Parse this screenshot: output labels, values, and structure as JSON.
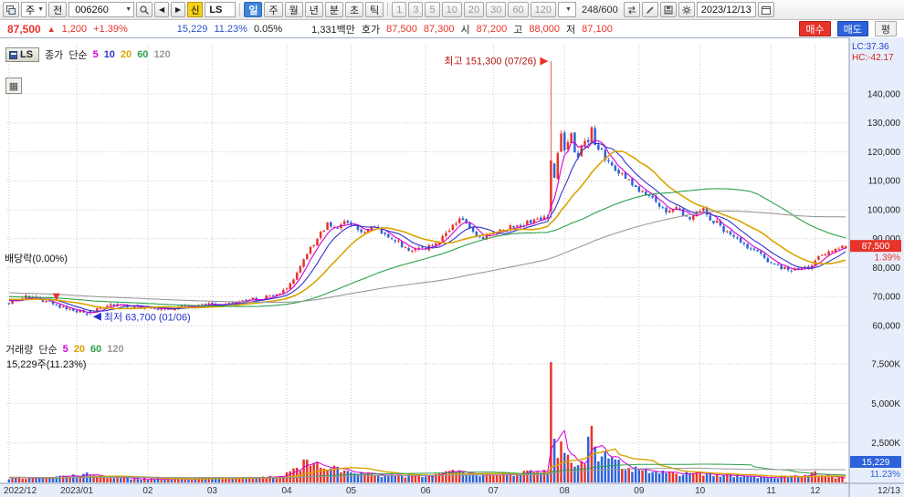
{
  "toolbar": {
    "period_combo": "주",
    "jeon_button": "전",
    "stock_code": "006260",
    "new_badge": "신",
    "stock_name": "LS",
    "period_tabs": [
      "일",
      "주",
      "월",
      "년",
      "분",
      "초",
      "틱"
    ],
    "active_period": "일",
    "interval_buttons": [
      "1",
      "3",
      "5",
      "10",
      "20",
      "30",
      "60",
      "120"
    ],
    "bar_counter": "248/600",
    "date": "2023/12/13"
  },
  "quote_bar": {
    "price": "87,500",
    "arrow": "▲",
    "change": "1,200",
    "change_pct": "+1.39%",
    "volume": "15,229",
    "volume_ratio": "11.23%",
    "strength": "0.05%",
    "value": "1,331백만",
    "hoga_label": "호가",
    "hoga_ask": "87,500",
    "hoga_bid": "87,300",
    "open_label": "시",
    "open": "87,200",
    "high_label": "고",
    "high": "88,000",
    "low_label": "저",
    "low": "87,100",
    "buy_button": "매수",
    "sell_button": "매도",
    "pyeong_button": "평"
  },
  "price_pane": {
    "ls_box": "LS",
    "legend_title": "종가",
    "legend_type": "단순",
    "legend_periods": [
      {
        "label": "5"
      },
      {
        "label": "10"
      },
      {
        "label": "20"
      },
      {
        "label": "60"
      },
      {
        "label": "120"
      }
    ],
    "lc_label": "LC:37.36",
    "hc_label": "HC:-42.17",
    "annotation_high": "최고 151,300 (07/26)",
    "annotation_low": "최저 63,700 (01/06)",
    "annotation_exdiv": "배당락(0.00%)",
    "current_price_badge": "87,500",
    "current_pct_badge": "1.39%",
    "grid_button": "▦"
  },
  "volume_pane": {
    "legend_title": "거래량",
    "legend_type": "단순",
    "legend_periods": [
      {
        "label": "5"
      },
      {
        "label": "20"
      },
      {
        "label": "60"
      },
      {
        "label": "120"
      }
    ],
    "volume_text": "15,229주(11.23%)",
    "current_volume_badge": "15,229",
    "current_volume_pct": "11.23%"
  },
  "chart_data": {
    "type": "candlestick_with_volume",
    "bars": 248,
    "price_ticks": [
      140000,
      130000,
      120000,
      110000,
      100000,
      90000,
      80000,
      70000,
      60000
    ],
    "price_axis_min": 60000,
    "price_axis_max": 157000,
    "volume_ticks_k": [
      7500,
      5000,
      2500
    ],
    "volume_axis_max_k": 8300,
    "x_ticks": [
      {
        "label": "2022/12",
        "i": 0
      },
      {
        "label": "2023/01",
        "i": 20
      },
      {
        "label": "02",
        "i": 41
      },
      {
        "label": "03",
        "i": 60
      },
      {
        "label": "04",
        "i": 82
      },
      {
        "label": "05",
        "i": 101
      },
      {
        "label": "06",
        "i": 123
      },
      {
        "label": "07",
        "i": 143
      },
      {
        "label": "08",
        "i": 164
      },
      {
        "label": "09",
        "i": 186
      },
      {
        "label": "10",
        "i": 204
      },
      {
        "label": "11",
        "i": 225
      },
      {
        "label": "12",
        "i": 238
      },
      {
        "label": "12/13",
        "i": 247
      }
    ],
    "key_points": {
      "low": {
        "i": 24,
        "price": 63700,
        "date": "01/06"
      },
      "high": {
        "i": 160,
        "price": 151300,
        "date": "07/26"
      },
      "ex_dividend": {
        "i": 14
      },
      "last_close": 87500,
      "last_change_pct": 1.39,
      "last_volume_shares": 15229,
      "last_volume_ratio_pct": 11.23
    },
    "close_anchors": [
      [
        0,
        68200
      ],
      [
        3,
        69400
      ],
      [
        6,
        69900
      ],
      [
        9,
        68600
      ],
      [
        12,
        67900
      ],
      [
        14,
        67300
      ],
      [
        17,
        65600
      ],
      [
        20,
        64800
      ],
      [
        24,
        63900
      ],
      [
        26,
        65300
      ],
      [
        30,
        66800
      ],
      [
        34,
        67200
      ],
      [
        38,
        66300
      ],
      [
        43,
        65400
      ],
      [
        48,
        65800
      ],
      [
        53,
        66400
      ],
      [
        58,
        67100
      ],
      [
        63,
        67700
      ],
      [
        68,
        68300
      ],
      [
        73,
        69100
      ],
      [
        78,
        70200
      ],
      [
        82,
        72500
      ],
      [
        85,
        78000
      ],
      [
        88,
        84500
      ],
      [
        91,
        90000
      ],
      [
        94,
        95200
      ],
      [
        96,
        93200
      ],
      [
        99,
        95600
      ],
      [
        102,
        93800
      ],
      [
        105,
        92800
      ],
      [
        108,
        93600
      ],
      [
        111,
        91200
      ],
      [
        114,
        89400
      ],
      [
        117,
        87200
      ],
      [
        120,
        85800
      ],
      [
        123,
        86600
      ],
      [
        126,
        88800
      ],
      [
        129,
        91500
      ],
      [
        131,
        94000
      ],
      [
        133,
        97300
      ],
      [
        135,
        94800
      ],
      [
        137,
        91600
      ],
      [
        140,
        90600
      ],
      [
        144,
        92000
      ],
      [
        148,
        93800
      ],
      [
        152,
        95200
      ],
      [
        156,
        96400
      ],
      [
        159,
        98300
      ],
      [
        160,
        117000
      ],
      [
        161,
        111000
      ],
      [
        162,
        120500
      ],
      [
        163,
        126000
      ],
      [
        164,
        119500
      ],
      [
        165,
        123500
      ],
      [
        166,
        126800
      ],
      [
        167,
        121000
      ],
      [
        168,
        118200
      ],
      [
        169,
        122500
      ],
      [
        171,
        124500
      ],
      [
        172,
        129800
      ],
      [
        173,
        123500
      ],
      [
        175,
        119800
      ],
      [
        177,
        116800
      ],
      [
        179,
        114200
      ],
      [
        181,
        111800
      ],
      [
        183,
        109800
      ],
      [
        185,
        108200
      ],
      [
        187,
        106200
      ],
      [
        189,
        104400
      ],
      [
        191,
        102400
      ],
      [
        193,
        100200
      ],
      [
        195,
        98800
      ],
      [
        197,
        101200
      ],
      [
        199,
        98200
      ],
      [
        201,
        96800
      ],
      [
        203,
        98400
      ],
      [
        205,
        99600
      ],
      [
        207,
        97000
      ],
      [
        209,
        95400
      ],
      [
        211,
        93200
      ],
      [
        213,
        91200
      ],
      [
        215,
        89600
      ],
      [
        217,
        88000
      ],
      [
        219,
        86400
      ],
      [
        221,
        85000
      ],
      [
        223,
        83400
      ],
      [
        225,
        82000
      ],
      [
        227,
        80700
      ],
      [
        229,
        79600
      ],
      [
        231,
        78600
      ],
      [
        233,
        79400
      ],
      [
        234,
        80800
      ],
      [
        236,
        79600
      ],
      [
        238,
        82800
      ],
      [
        240,
        84800
      ],
      [
        242,
        85600
      ],
      [
        244,
        86100
      ],
      [
        246,
        86900
      ],
      [
        247,
        87500
      ]
    ],
    "price_overrides": {
      "24": {
        "open": 65100,
        "close": 64300,
        "low": 63700
      },
      "160": {
        "open": 99500,
        "close": 117000,
        "high": 151300,
        "low": 97000
      },
      "161": {
        "open": 116000,
        "close": 111000
      },
      "247": {
        "open": 86600,
        "close": 87500
      }
    },
    "volume_anchors_k": [
      [
        0,
        260
      ],
      [
        6,
        300
      ],
      [
        12,
        240
      ],
      [
        16,
        420
      ],
      [
        20,
        380
      ],
      [
        24,
        520
      ],
      [
        30,
        300
      ],
      [
        38,
        240
      ],
      [
        46,
        220
      ],
      [
        54,
        260
      ],
      [
        62,
        280
      ],
      [
        70,
        300
      ],
      [
        78,
        340
      ],
      [
        82,
        520
      ],
      [
        85,
        900
      ],
      [
        88,
        1250
      ],
      [
        91,
        1100
      ],
      [
        94,
        950
      ],
      [
        97,
        800
      ],
      [
        101,
        650
      ],
      [
        105,
        520
      ],
      [
        110,
        430
      ],
      [
        115,
        380
      ],
      [
        120,
        420
      ],
      [
        125,
        480
      ],
      [
        128,
        560
      ],
      [
        131,
        820
      ],
      [
        133,
        900
      ],
      [
        136,
        620
      ],
      [
        140,
        480
      ],
      [
        144,
        520
      ],
      [
        148,
        560
      ],
      [
        152,
        600
      ],
      [
        156,
        640
      ],
      [
        159,
        700
      ],
      [
        160,
        7600
      ],
      [
        161,
        2600
      ],
      [
        162,
        2100
      ],
      [
        163,
        2300
      ],
      [
        164,
        1750
      ],
      [
        166,
        1500
      ],
      [
        168,
        1300
      ],
      [
        170,
        1450
      ],
      [
        172,
        3400
      ],
      [
        174,
        1800
      ],
      [
        176,
        2500
      ],
      [
        178,
        1400
      ],
      [
        180,
        1150
      ],
      [
        183,
        950
      ],
      [
        186,
        820
      ],
      [
        190,
        700
      ],
      [
        194,
        620
      ],
      [
        198,
        560
      ],
      [
        202,
        600
      ],
      [
        206,
        520
      ],
      [
        210,
        460
      ],
      [
        214,
        420
      ],
      [
        218,
        380
      ],
      [
        222,
        360
      ],
      [
        226,
        330
      ],
      [
        230,
        360
      ],
      [
        234,
        420
      ],
      [
        238,
        560
      ],
      [
        241,
        420
      ],
      [
        244,
        330
      ],
      [
        246,
        280
      ],
      [
        247,
        15
      ]
    ],
    "volume_overrides": [
      [
        160,
        7600
      ],
      [
        247,
        15
      ]
    ],
    "ma_periods_price": [
      5,
      10,
      20,
      60,
      120
    ],
    "ma_periods_volume": [
      5,
      20,
      60,
      120
    ],
    "ma_history": {
      "price_start": 74000,
      "price_end": 68800,
      "volume_k": 320
    },
    "colors": {
      "up": "#e8332a",
      "down": "#2e62d9",
      "ma5": "#d400d4",
      "ma10": "#3333cc",
      "ma20": "#d8a500",
      "ma60": "#2ca04a",
      "ma120": "#9a9a9a",
      "axis_bg": "#e7eefb",
      "grid": "#c9c9c9",
      "axis_border": "#8f9bb3",
      "high_text": "#b01515",
      "low_text": "#2233cc"
    }
  }
}
